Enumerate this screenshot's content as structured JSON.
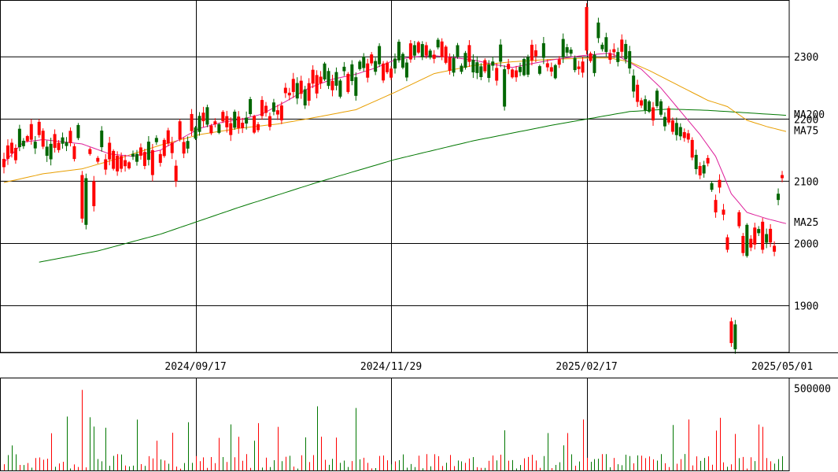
{
  "chart_data": {
    "type": "candlestick",
    "x_axis_labels": [
      {
        "label": "2024/09/17",
        "index": 49
      },
      {
        "label": "2024/11/29",
        "index": 99
      },
      {
        "label": "2025/02/17",
        "index": 149
      },
      {
        "label": "2025/05/01",
        "index": 199
      }
    ],
    "price_axis": {
      "ticks": [
        1900,
        2000,
        2100,
        2200,
        2300
      ],
      "ylim": [
        1825,
        2390
      ],
      "grid": true
    },
    "ma_labels": [
      {
        "name": "MA200",
        "color": "#007700",
        "value": 2208
      },
      {
        "name": "MA75",
        "color": "#e89e00",
        "value": 2182
      },
      {
        "name": "MA25",
        "color": "#dd1e9a",
        "value": 2035
      }
    ],
    "colors": {
      "up": "#ff0000",
      "down": "#006600",
      "ma200": "#007700",
      "ma75": "#e89e00",
      "ma25": "#dd1e9a"
    },
    "ma200_values": [
      [
        9,
        1970
      ],
      [
        24,
        1988
      ],
      [
        40,
        2015
      ],
      [
        60,
        2058
      ],
      [
        80,
        2098
      ],
      [
        100,
        2135
      ],
      [
        120,
        2165
      ],
      [
        140,
        2190
      ],
      [
        160,
        2212
      ],
      [
        170,
        2216
      ],
      [
        180,
        2214
      ],
      [
        190,
        2210
      ],
      [
        200,
        2206
      ]
    ],
    "ma75_values": [
      [
        0,
        2098
      ],
      [
        10,
        2112
      ],
      [
        20,
        2120
      ],
      [
        30,
        2138
      ],
      [
        40,
        2158
      ],
      [
        50,
        2175
      ],
      [
        60,
        2185
      ],
      [
        70,
        2192
      ],
      [
        80,
        2203
      ],
      [
        90,
        2215
      ],
      [
        100,
        2243
      ],
      [
        110,
        2273
      ],
      [
        120,
        2286
      ],
      [
        130,
        2292
      ],
      [
        140,
        2296
      ],
      [
        150,
        2298
      ],
      [
        155,
        2298
      ],
      [
        160,
        2292
      ],
      [
        165,
        2278
      ],
      [
        170,
        2262
      ],
      [
        180,
        2230
      ],
      [
        185,
        2220
      ],
      [
        190,
        2198
      ],
      [
        195,
        2188
      ],
      [
        200,
        2180
      ]
    ],
    "ma25_values": [
      [
        0,
        2130
      ],
      [
        5,
        2163
      ],
      [
        10,
        2167
      ],
      [
        20,
        2160
      ],
      [
        27,
        2144
      ],
      [
        33,
        2140
      ],
      [
        40,
        2150
      ],
      [
        50,
        2185
      ],
      [
        56,
        2195
      ],
      [
        61,
        2200
      ],
      [
        66,
        2208
      ],
      [
        72,
        2228
      ],
      [
        78,
        2250
      ],
      [
        84,
        2264
      ],
      [
        90,
        2272
      ],
      [
        95,
        2282
      ],
      [
        100,
        2295
      ],
      [
        105,
        2300
      ],
      [
        110,
        2302
      ],
      [
        120,
        2295
      ],
      [
        125,
        2288
      ],
      [
        130,
        2283
      ],
      [
        140,
        2295
      ],
      [
        148,
        2302
      ],
      [
        155,
        2306
      ],
      [
        158,
        2298
      ],
      [
        163,
        2280
      ],
      [
        168,
        2250
      ],
      [
        172,
        2220
      ],
      [
        178,
        2175
      ],
      [
        182,
        2140
      ],
      [
        186,
        2080
      ],
      [
        190,
        2050
      ],
      [
        195,
        2040
      ],
      [
        200,
        2032
      ]
    ],
    "volume_axis": {
      "ticks": [
        500000
      ],
      "ylim": [
        0,
        560000
      ]
    },
    "volume_description": "daily volume bars, mostly under 100000 with spikes up to ~500000",
    "volume_seed": 57
  }
}
